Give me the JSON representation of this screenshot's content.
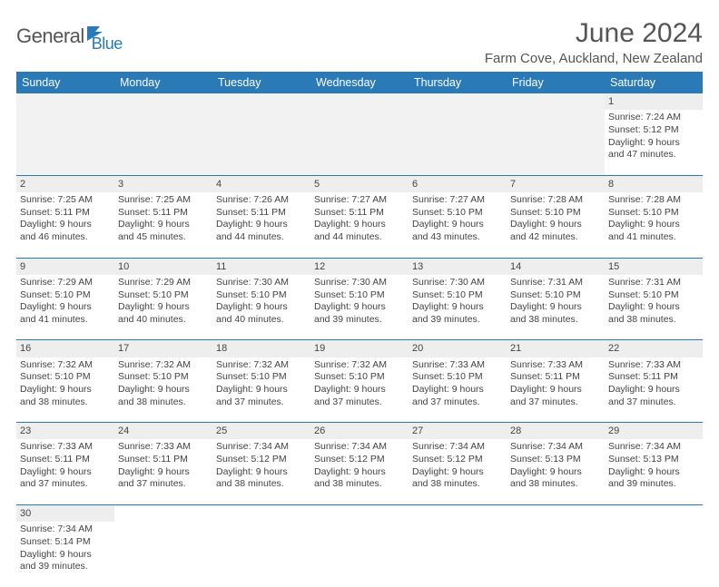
{
  "logo": {
    "text1": "General",
    "text2": "Blue"
  },
  "title": "June 2024",
  "location": "Farm Cove, Auckland, New Zealand",
  "colors": {
    "header_bg": "#2a7ab8",
    "header_fg": "#ffffff",
    "daynum_bg": "#eeeeee",
    "rule": "#2a7ab8"
  },
  "columns": [
    "Sunday",
    "Monday",
    "Tuesday",
    "Wednesday",
    "Thursday",
    "Friday",
    "Saturday"
  ],
  "weeks": [
    [
      null,
      null,
      null,
      null,
      null,
      null,
      {
        "n": "1",
        "rise": "Sunrise: 7:24 AM",
        "set": "Sunset: 5:12 PM",
        "d1": "Daylight: 9 hours",
        "d2": "and 47 minutes."
      }
    ],
    [
      {
        "n": "2",
        "rise": "Sunrise: 7:25 AM",
        "set": "Sunset: 5:11 PM",
        "d1": "Daylight: 9 hours",
        "d2": "and 46 minutes."
      },
      {
        "n": "3",
        "rise": "Sunrise: 7:25 AM",
        "set": "Sunset: 5:11 PM",
        "d1": "Daylight: 9 hours",
        "d2": "and 45 minutes."
      },
      {
        "n": "4",
        "rise": "Sunrise: 7:26 AM",
        "set": "Sunset: 5:11 PM",
        "d1": "Daylight: 9 hours",
        "d2": "and 44 minutes."
      },
      {
        "n": "5",
        "rise": "Sunrise: 7:27 AM",
        "set": "Sunset: 5:11 PM",
        "d1": "Daylight: 9 hours",
        "d2": "and 44 minutes."
      },
      {
        "n": "6",
        "rise": "Sunrise: 7:27 AM",
        "set": "Sunset: 5:10 PM",
        "d1": "Daylight: 9 hours",
        "d2": "and 43 minutes."
      },
      {
        "n": "7",
        "rise": "Sunrise: 7:28 AM",
        "set": "Sunset: 5:10 PM",
        "d1": "Daylight: 9 hours",
        "d2": "and 42 minutes."
      },
      {
        "n": "8",
        "rise": "Sunrise: 7:28 AM",
        "set": "Sunset: 5:10 PM",
        "d1": "Daylight: 9 hours",
        "d2": "and 41 minutes."
      }
    ],
    [
      {
        "n": "9",
        "rise": "Sunrise: 7:29 AM",
        "set": "Sunset: 5:10 PM",
        "d1": "Daylight: 9 hours",
        "d2": "and 41 minutes."
      },
      {
        "n": "10",
        "rise": "Sunrise: 7:29 AM",
        "set": "Sunset: 5:10 PM",
        "d1": "Daylight: 9 hours",
        "d2": "and 40 minutes."
      },
      {
        "n": "11",
        "rise": "Sunrise: 7:30 AM",
        "set": "Sunset: 5:10 PM",
        "d1": "Daylight: 9 hours",
        "d2": "and 40 minutes."
      },
      {
        "n": "12",
        "rise": "Sunrise: 7:30 AM",
        "set": "Sunset: 5:10 PM",
        "d1": "Daylight: 9 hours",
        "d2": "and 39 minutes."
      },
      {
        "n": "13",
        "rise": "Sunrise: 7:30 AM",
        "set": "Sunset: 5:10 PM",
        "d1": "Daylight: 9 hours",
        "d2": "and 39 minutes."
      },
      {
        "n": "14",
        "rise": "Sunrise: 7:31 AM",
        "set": "Sunset: 5:10 PM",
        "d1": "Daylight: 9 hours",
        "d2": "and 38 minutes."
      },
      {
        "n": "15",
        "rise": "Sunrise: 7:31 AM",
        "set": "Sunset: 5:10 PM",
        "d1": "Daylight: 9 hours",
        "d2": "and 38 minutes."
      }
    ],
    [
      {
        "n": "16",
        "rise": "Sunrise: 7:32 AM",
        "set": "Sunset: 5:10 PM",
        "d1": "Daylight: 9 hours",
        "d2": "and 38 minutes."
      },
      {
        "n": "17",
        "rise": "Sunrise: 7:32 AM",
        "set": "Sunset: 5:10 PM",
        "d1": "Daylight: 9 hours",
        "d2": "and 38 minutes."
      },
      {
        "n": "18",
        "rise": "Sunrise: 7:32 AM",
        "set": "Sunset: 5:10 PM",
        "d1": "Daylight: 9 hours",
        "d2": "and 37 minutes."
      },
      {
        "n": "19",
        "rise": "Sunrise: 7:32 AM",
        "set": "Sunset: 5:10 PM",
        "d1": "Daylight: 9 hours",
        "d2": "and 37 minutes."
      },
      {
        "n": "20",
        "rise": "Sunrise: 7:33 AM",
        "set": "Sunset: 5:10 PM",
        "d1": "Daylight: 9 hours",
        "d2": "and 37 minutes."
      },
      {
        "n": "21",
        "rise": "Sunrise: 7:33 AM",
        "set": "Sunset: 5:11 PM",
        "d1": "Daylight: 9 hours",
        "d2": "and 37 minutes."
      },
      {
        "n": "22",
        "rise": "Sunrise: 7:33 AM",
        "set": "Sunset: 5:11 PM",
        "d1": "Daylight: 9 hours",
        "d2": "and 37 minutes."
      }
    ],
    [
      {
        "n": "23",
        "rise": "Sunrise: 7:33 AM",
        "set": "Sunset: 5:11 PM",
        "d1": "Daylight: 9 hours",
        "d2": "and 37 minutes."
      },
      {
        "n": "24",
        "rise": "Sunrise: 7:33 AM",
        "set": "Sunset: 5:11 PM",
        "d1": "Daylight: 9 hours",
        "d2": "and 37 minutes."
      },
      {
        "n": "25",
        "rise": "Sunrise: 7:34 AM",
        "set": "Sunset: 5:12 PM",
        "d1": "Daylight: 9 hours",
        "d2": "and 38 minutes."
      },
      {
        "n": "26",
        "rise": "Sunrise: 7:34 AM",
        "set": "Sunset: 5:12 PM",
        "d1": "Daylight: 9 hours",
        "d2": "and 38 minutes."
      },
      {
        "n": "27",
        "rise": "Sunrise: 7:34 AM",
        "set": "Sunset: 5:12 PM",
        "d1": "Daylight: 9 hours",
        "d2": "and 38 minutes."
      },
      {
        "n": "28",
        "rise": "Sunrise: 7:34 AM",
        "set": "Sunset: 5:13 PM",
        "d1": "Daylight: 9 hours",
        "d2": "and 38 minutes."
      },
      {
        "n": "29",
        "rise": "Sunrise: 7:34 AM",
        "set": "Sunset: 5:13 PM",
        "d1": "Daylight: 9 hours",
        "d2": "and 39 minutes."
      }
    ],
    [
      {
        "n": "30",
        "rise": "Sunrise: 7:34 AM",
        "set": "Sunset: 5:14 PM",
        "d1": "Daylight: 9 hours",
        "d2": "and 39 minutes."
      },
      null,
      null,
      null,
      null,
      null,
      null
    ]
  ]
}
